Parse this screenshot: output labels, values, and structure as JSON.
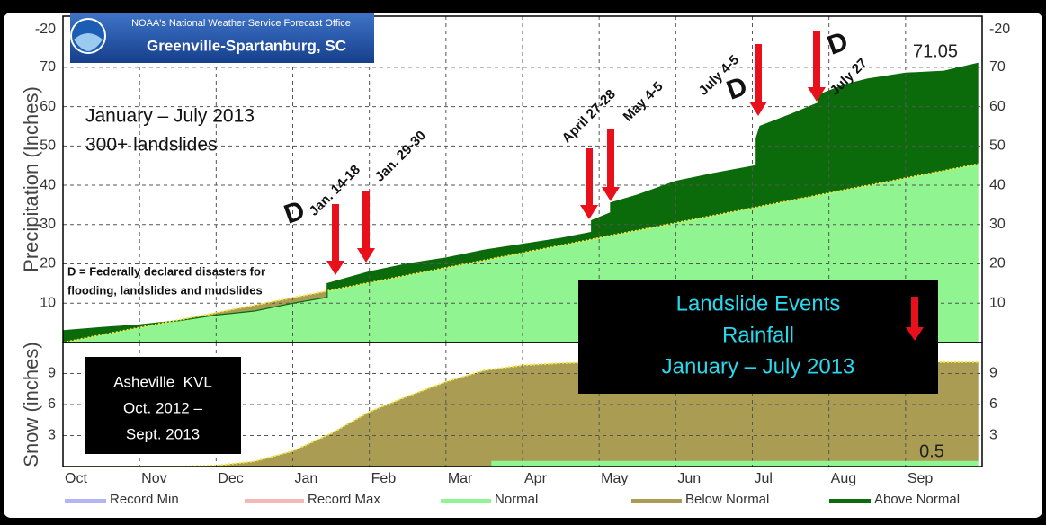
{
  "chart_data": {
    "type": "cumulative_area",
    "header": {
      "office": "NOAA's National Weather Service Forecast Office",
      "name": "Greenville-Spartanburg, SC"
    },
    "xlim": [
      0,
      12
    ],
    "xticks": [
      {
        "value": 0,
        "label": "Oct"
      },
      {
        "value": 1,
        "label": "Nov"
      },
      {
        "value": 2,
        "label": "Dec"
      },
      {
        "value": 3,
        "label": "Jan"
      },
      {
        "value": 4,
        "label": "Feb"
      },
      {
        "value": 5,
        "label": "Mar"
      },
      {
        "value": 6,
        "label": "Apr"
      },
      {
        "value": 7,
        "label": "May"
      },
      {
        "value": 8,
        "label": "Jun"
      },
      {
        "value": 9,
        "label": "Jul"
      },
      {
        "value": 10,
        "label": "Aug"
      },
      {
        "value": 11,
        "label": "Sep"
      }
    ],
    "grid": true,
    "panels": [
      {
        "y_label": "Precipitation (Inches)",
        "top_label": "-20",
        "ylim": [
          0,
          83
        ],
        "yticks": [
          10,
          20,
          30,
          40,
          50,
          60,
          70
        ],
        "x": [
          0,
          0.5,
          1,
          1.5,
          2,
          2.5,
          3,
          3.45,
          3.45,
          4,
          4.5,
          5,
          5.5,
          6,
          6.5,
          6.9,
          6.9,
          7.15,
          7.15,
          7.5,
          8,
          8.5,
          9.05,
          9.05,
          9.1,
          9.5,
          9.87,
          9.87,
          10.2,
          10.5,
          11,
          11.5,
          11.95
        ],
        "normal": [
          0,
          1.9,
          3.8,
          5.7,
          7.6,
          9.5,
          11.4,
          13.1,
          13.1,
          15.2,
          17.1,
          19,
          20.9,
          22.8,
          24.7,
          26.2,
          26.2,
          27.2,
          27.2,
          28.5,
          30.4,
          32.3,
          34.4,
          34.4,
          34.6,
          36.1,
          37.5,
          37.5,
          38.8,
          39.9,
          41.8,
          43.7,
          45.4
        ],
        "observed": [
          3,
          3.8,
          4.5,
          5.5,
          7,
          8,
          10,
          11.5,
          15,
          18,
          20,
          21.5,
          23.5,
          25,
          26.5,
          28,
          31,
          33,
          35.5,
          37.5,
          41,
          43,
          45,
          52,
          55,
          58,
          61,
          63,
          65.5,
          67,
          68.5,
          69,
          71.05
        ]
      },
      {
        "y_label": "Snow (inches)",
        "ylim": [
          0,
          12
        ],
        "yticks": [
          3,
          6,
          9
        ],
        "x": [
          0,
          1,
          1.5,
          2,
          2.5,
          3,
          3.5,
          4,
          4.5,
          5,
          5.5,
          5.6,
          5.6,
          6,
          6.5,
          7,
          8,
          9,
          10,
          11,
          11.95
        ],
        "normal": [
          0,
          0,
          0,
          0.1,
          0.5,
          1.5,
          3.2,
          5.3,
          6.8,
          8.2,
          9.3,
          9.4,
          9.4,
          9.8,
          10,
          10.1,
          10.1,
          10.1,
          10.1,
          10.1,
          10.1
        ],
        "observed": [
          0,
          0,
          0,
          0,
          0,
          0,
          0,
          0,
          0,
          0,
          0,
          0,
          0.5,
          0.5,
          0.5,
          0.5,
          0.5,
          0.5,
          0.5,
          0.5,
          0.5
        ]
      }
    ],
    "legend": [
      {
        "name": "Record Min",
        "color": "#b4b4f4"
      },
      {
        "name": "Record Max",
        "color": "#f4b8b8"
      },
      {
        "name": "Normal",
        "color": "#90f590"
      },
      {
        "name": "Below Normal",
        "color": "#aa9c52"
      },
      {
        "name": "Above Normal",
        "color": "#0b6b0b"
      }
    ],
    "notes": [
      "January – July 2013",
      "300+ landslides"
    ],
    "disaster_mark": "D",
    "disaster_note": [
      "D = Federally declared disasters for",
      "flooding, landslides and mudslides"
    ],
    "events": [
      {
        "label": "Jan. 14-18",
        "declared": true
      },
      {
        "label": "Jan. 29-30",
        "declared": false
      },
      {
        "label": "April 27-28",
        "declared": false
      },
      {
        "label": "May 4-5",
        "declared": false
      },
      {
        "label": "July 4-5",
        "declared": true
      },
      {
        "label": "July 27",
        "declared": true
      }
    ],
    "key_box": [
      "Landslide Events",
      "Rainfall",
      "January – July 2013"
    ],
    "station_box": [
      "Asheville  KVL",
      "Oct. 2012 –",
      "Sept. 2013"
    ]
  }
}
